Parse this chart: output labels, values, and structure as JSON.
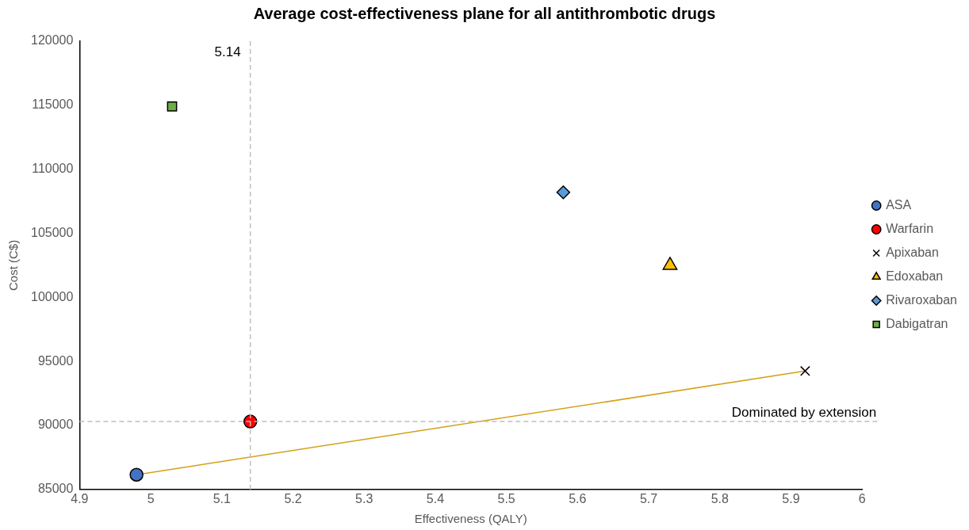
{
  "chart_data": {
    "type": "scatter",
    "title": "Average cost-effectiveness plane for all antithrombotic drugs",
    "xlabel": "Effectiveness (QALY)",
    "ylabel": "Cost (C$)",
    "xlim": [
      4.9,
      6
    ],
    "xticks": [
      4.9,
      5,
      5.1,
      5.2,
      5.3,
      5.4,
      5.5,
      5.6,
      5.7,
      5.8,
      5.9,
      6
    ],
    "ylim": [
      85000,
      120000
    ],
    "yticks": [
      85000,
      90000,
      95000,
      100000,
      105000,
      110000,
      115000,
      120000
    ],
    "grid": false,
    "legend": "right",
    "series": [
      {
        "name": "ASA",
        "color": "#4472c4",
        "marker": "circle",
        "x": [
          4.98
        ],
        "values": [
          86150
        ]
      },
      {
        "name": "Warfarin",
        "color": "#ff0000",
        "marker": "circle",
        "x": [
          5.14
        ],
        "values": [
          90300
        ]
      },
      {
        "name": "Apixaban",
        "color": "#000000",
        "marker": "cross",
        "x": [
          5.92
        ],
        "values": [
          94250
        ]
      },
      {
        "name": "Edoxaban",
        "color": "#ffc000",
        "marker": "triangle",
        "x": [
          5.73
        ],
        "values": [
          102500
        ]
      },
      {
        "name": "Rivaroxaban",
        "color": "#5b9bd5",
        "marker": "diamond",
        "x": [
          5.58
        ],
        "values": [
          108200
        ]
      },
      {
        "name": "Dabigatran",
        "color": "#70ad47",
        "marker": "square",
        "x": [
          5.03
        ],
        "values": [
          114900
        ]
      },
      {
        "type": "line",
        "color": "#d4a017",
        "marker": "none",
        "x": [
          4.98,
          5.92
        ],
        "values": [
          86150,
          94250
        ]
      }
    ],
    "ref_lines": [
      {
        "axis": "x",
        "value": 5.14,
        "label": "5.14",
        "color": "#bfbfbf",
        "line_style": "dashed"
      },
      {
        "axis": "y",
        "value": 90300,
        "label": "Dominated by extension",
        "color": "#bfbfbf",
        "line_style": "dashed"
      }
    ]
  }
}
